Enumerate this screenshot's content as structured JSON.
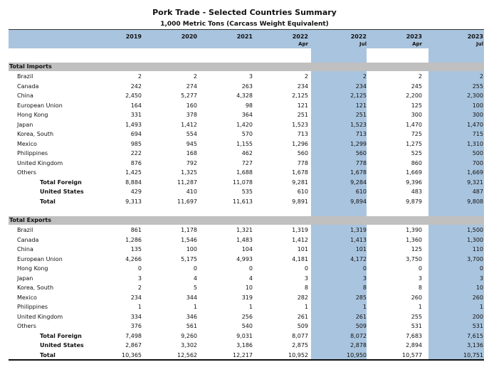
{
  "title": "Pork Trade - Selected Countries Summary",
  "subtitle": "1,000 Metric Tons (Carcass Weight Equivalent)",
  "columns": [
    {
      "year": "2019",
      "month": ""
    },
    {
      "year": "2020",
      "month": ""
    },
    {
      "year": "2021",
      "month": ""
    },
    {
      "year": "2022",
      "month": "Apr"
    },
    {
      "year": "2022",
      "month": "Jul"
    },
    {
      "year": "2023",
      "month": "Apr"
    },
    {
      "year": "2023",
      "month": "Jul"
    }
  ],
  "highlight_color": "#a9c4de",
  "sections": [
    {
      "label": "Total Imports",
      "rows": [
        {
          "label": "Brazil",
          "values": [
            "2",
            "2",
            "3",
            "2",
            "2",
            "2",
            "2"
          ]
        },
        {
          "label": "Canada",
          "values": [
            "242",
            "274",
            "263",
            "234",
            "234",
            "245",
            "255"
          ]
        },
        {
          "label": "China",
          "values": [
            "2,450",
            "5,277",
            "4,328",
            "2,125",
            "2,125",
            "2,200",
            "2,300"
          ]
        },
        {
          "label": "European Union",
          "values": [
            "164",
            "160",
            "98",
            "121",
            "121",
            "125",
            "100"
          ]
        },
        {
          "label": "Hong Kong",
          "values": [
            "331",
            "378",
            "364",
            "251",
            "251",
            "300",
            "300"
          ]
        },
        {
          "label": "Japan",
          "values": [
            "1,493",
            "1,412",
            "1,420",
            "1,523",
            "1,523",
            "1,470",
            "1,470"
          ]
        },
        {
          "label": "Korea, South",
          "values": [
            "694",
            "554",
            "570",
            "713",
            "713",
            "725",
            "715"
          ]
        },
        {
          "label": "Mexico",
          "values": [
            "985",
            "945",
            "1,155",
            "1,296",
            "1,299",
            "1,275",
            "1,310"
          ]
        },
        {
          "label": "Philippines",
          "values": [
            "222",
            "168",
            "462",
            "560",
            "560",
            "525",
            "500"
          ]
        },
        {
          "label": "United Kingdom",
          "values": [
            "876",
            "792",
            "727",
            "778",
            "778",
            "860",
            "700"
          ]
        },
        {
          "label": "Others",
          "values": [
            "1,425",
            "1,325",
            "1,688",
            "1,678",
            "1,678",
            "1,669",
            "1,669"
          ]
        },
        {
          "label": "Total Foreign",
          "total": true,
          "values": [
            "8,884",
            "11,287",
            "11,078",
            "9,281",
            "9,284",
            "9,396",
            "9,321"
          ]
        },
        {
          "label": "United States",
          "total": true,
          "values": [
            "429",
            "410",
            "535",
            "610",
            "610",
            "483",
            "487"
          ]
        },
        {
          "label": "Total",
          "total": true,
          "values": [
            "9,313",
            "11,697",
            "11,613",
            "9,891",
            "9,894",
            "9,879",
            "9,808"
          ]
        }
      ]
    },
    {
      "label": "Total Exports",
      "rows": [
        {
          "label": "Brazil",
          "values": [
            "861",
            "1,178",
            "1,321",
            "1,319",
            "1,319",
            "1,390",
            "1,500"
          ]
        },
        {
          "label": "Canada",
          "values": [
            "1,286",
            "1,546",
            "1,483",
            "1,412",
            "1,413",
            "1,360",
            "1,300"
          ]
        },
        {
          "label": "China",
          "values": [
            "135",
            "100",
            "104",
            "101",
            "101",
            "125",
            "110"
          ]
        },
        {
          "label": "European Union",
          "values": [
            "4,266",
            "5,175",
            "4,993",
            "4,181",
            "4,172",
            "3,750",
            "3,700"
          ]
        },
        {
          "label": "Hong Kong",
          "values": [
            "0",
            "0",
            "0",
            "0",
            "0",
            "0",
            "0"
          ]
        },
        {
          "label": "Japan",
          "values": [
            "3",
            "4",
            "4",
            "3",
            "3",
            "3",
            "3"
          ]
        },
        {
          "label": "Korea, South",
          "values": [
            "2",
            "5",
            "10",
            "8",
            "8",
            "8",
            "10"
          ]
        },
        {
          "label": "Mexico",
          "values": [
            "234",
            "344",
            "319",
            "282",
            "285",
            "260",
            "260"
          ]
        },
        {
          "label": "Philippines",
          "values": [
            "1",
            "1",
            "1",
            "1",
            "1",
            "1",
            "1"
          ]
        },
        {
          "label": "United Kingdom",
          "values": [
            "334",
            "346",
            "256",
            "261",
            "261",
            "255",
            "200"
          ]
        },
        {
          "label": "Others",
          "values": [
            "376",
            "561",
            "540",
            "509",
            "509",
            "531",
            "531"
          ]
        },
        {
          "label": "Total Foreign",
          "total": true,
          "values": [
            "7,498",
            "9,260",
            "9,031",
            "8,077",
            "8,072",
            "7,683",
            "7,615"
          ]
        },
        {
          "label": "United States",
          "total": true,
          "values": [
            "2,867",
            "3,302",
            "3,186",
            "2,875",
            "2,878",
            "2,894",
            "3,136"
          ]
        },
        {
          "label": "Total",
          "total": true,
          "values": [
            "10,365",
            "12,562",
            "12,217",
            "10,952",
            "10,950",
            "10,577",
            "10,751"
          ]
        }
      ]
    }
  ]
}
